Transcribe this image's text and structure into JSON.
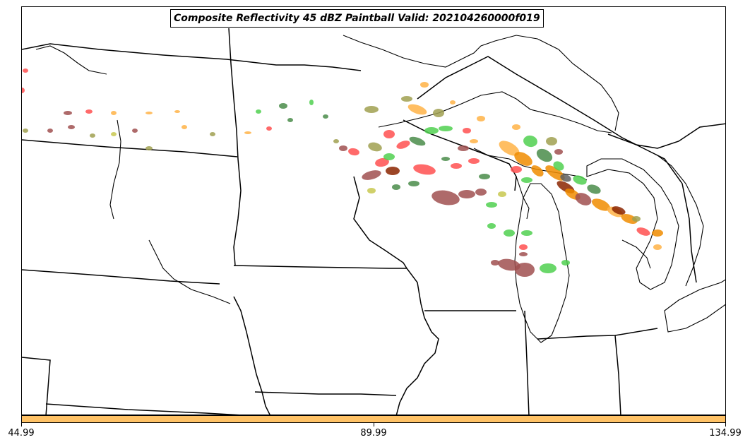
{
  "title": "Composite Reflectivity 45 dBZ Paintball Valid: 202104260000f019",
  "colorbar": {
    "color": "#ffc266",
    "ticks": [
      "44.99",
      "89.99",
      "134.99"
    ]
  },
  "colors": {
    "member_palette": [
      "#a05050",
      "#ff5050",
      "#ffb347",
      "#f08c00",
      "#50d050",
      "#4a8c4a",
      "#a0a050",
      "#c8c850",
      "#8b2500",
      "#606060"
    ]
  }
}
